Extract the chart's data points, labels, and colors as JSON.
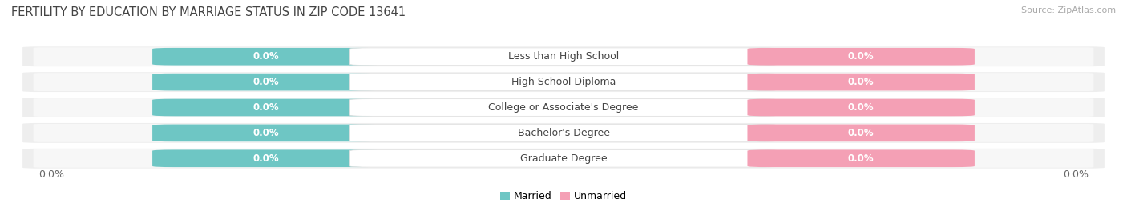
{
  "title": "FERTILITY BY EDUCATION BY MARRIAGE STATUS IN ZIP CODE 13641",
  "source": "Source: ZipAtlas.com",
  "categories": [
    "Less than High School",
    "High School Diploma",
    "College or Associate's Degree",
    "Bachelor's Degree",
    "Graduate Degree"
  ],
  "married_values": [
    0.0,
    0.0,
    0.0,
    0.0,
    0.0
  ],
  "unmarried_values": [
    0.0,
    0.0,
    0.0,
    0.0,
    0.0
  ],
  "married_color": "#6ec6c4",
  "unmarried_color": "#f4a0b5",
  "row_bg_color": "#eeeeee",
  "row_bg_inner": "#f7f7f7",
  "label_married": "Married",
  "label_unmarried": "Unmarried",
  "x_left_label": "0.0%",
  "x_right_label": "0.0%",
  "title_fontsize": 10.5,
  "source_fontsize": 8,
  "tick_fontsize": 9,
  "bar_label_fontsize": 8.5,
  "category_fontsize": 9,
  "legend_fontsize": 9
}
